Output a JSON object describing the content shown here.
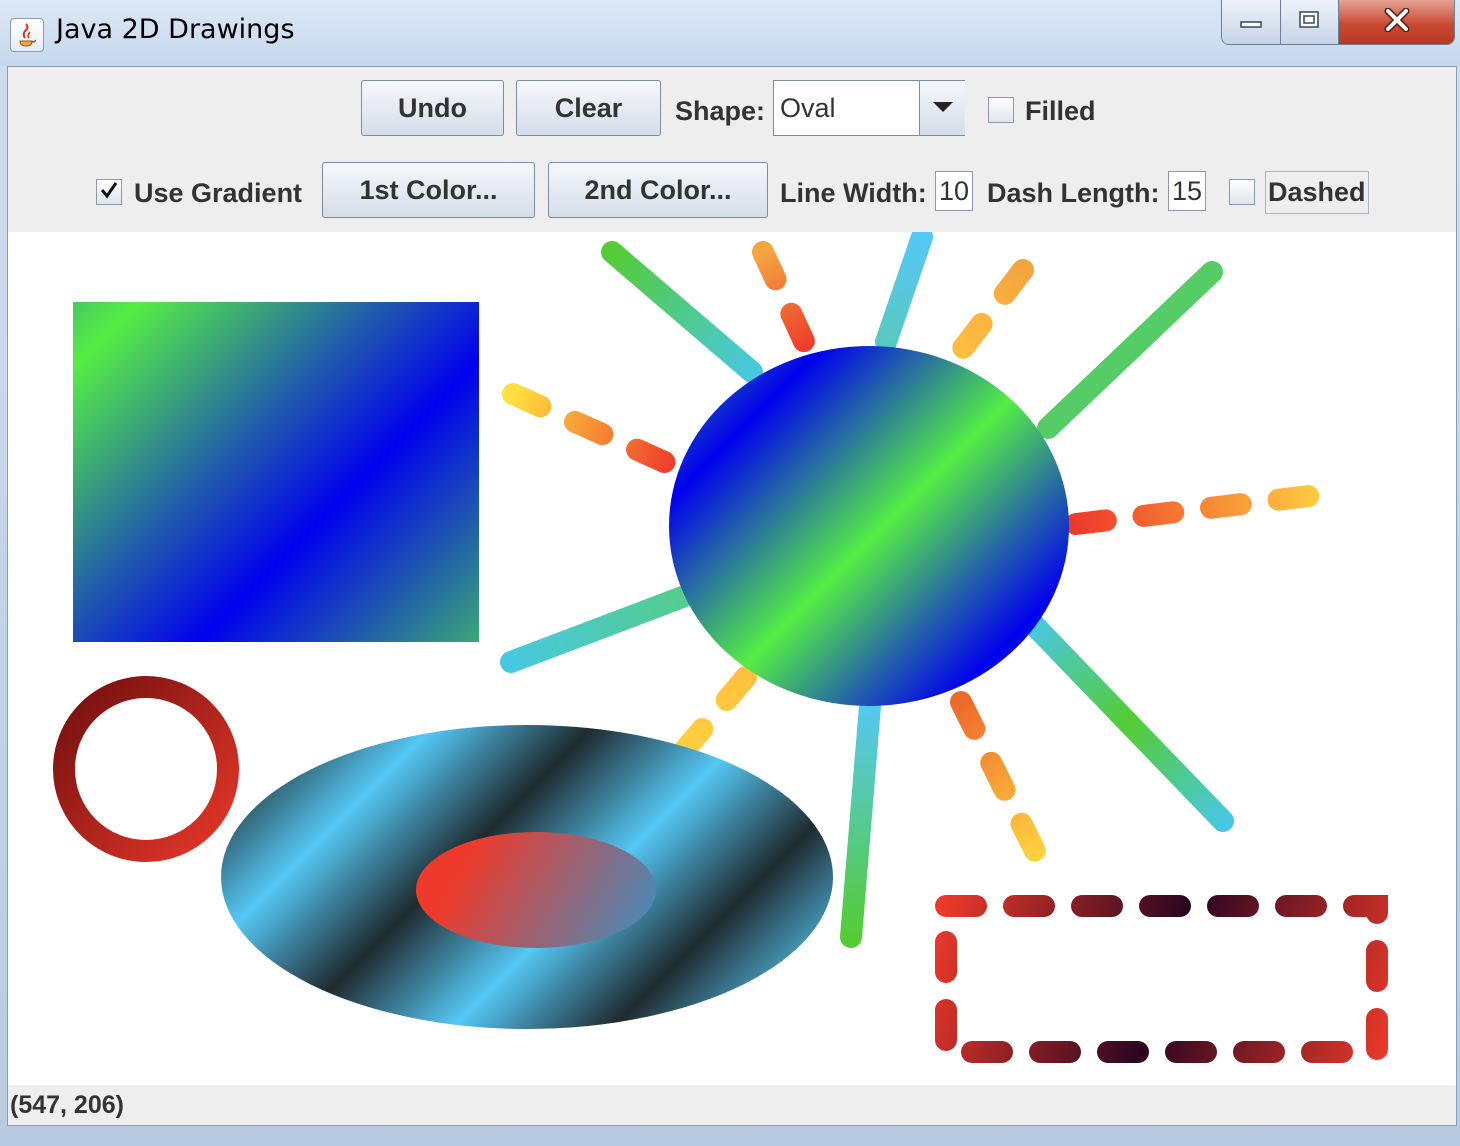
{
  "window": {
    "title": "Java 2D Drawings",
    "controls": {
      "minimize": "minimize-icon",
      "maximize": "restore-icon",
      "close": "close-icon"
    }
  },
  "toolbar": {
    "undo_label": "Undo",
    "clear_label": "Clear",
    "shape_label": "Shape:",
    "shape_value": "Oval",
    "filled_label": "Filled",
    "filled_checked": false,
    "gradient_label": "Use Gradient",
    "gradient_checked": true,
    "color1_label": "1st Color...",
    "color2_label": "2nd Color...",
    "line_width_label": "Line Width:",
    "line_width_value": "10",
    "dash_length_label": "Dash Length:",
    "dash_length_value": "15",
    "dashed_label": "Dashed",
    "dashed_checked": false
  },
  "colors": {
    "green": "#55ee44",
    "blue": "#0000ee",
    "sky": "#55c8f5",
    "dark": "#1f2a2f",
    "red": "#ee3a2a",
    "yellow": "#ffe040",
    "darkred": "#7a0f10",
    "darkpurple": "#2a0520"
  },
  "status": {
    "text": "(547, 206)"
  }
}
